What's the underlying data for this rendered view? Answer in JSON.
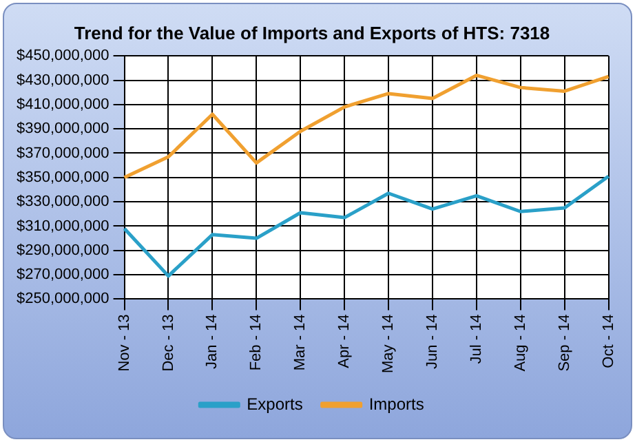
{
  "chart_data": {
    "type": "line",
    "title": "Trend for the Value of Imports and Exports of HTS: 7318",
    "categories": [
      "Nov - 13",
      "Dec - 13",
      "Jan - 14",
      "Feb - 14",
      "Mar - 14",
      "Apr - 14",
      "May - 14",
      "Jun - 14",
      "Jul - 14",
      "Aug - 14",
      "Sep - 14",
      "Oct - 14"
    ],
    "series": [
      {
        "name": "Exports",
        "color": "#2aa0c8",
        "values": [
          308000000,
          269000000,
          303000000,
          300000000,
          321000000,
          317000000,
          337000000,
          324000000,
          335000000,
          322000000,
          325000000,
          351000000
        ]
      },
      {
        "name": "Imports",
        "color": "#f0a030",
        "values": [
          350000000,
          367000000,
          402000000,
          362000000,
          388000000,
          408000000,
          419000000,
          415000000,
          434000000,
          424000000,
          421000000,
          433000000
        ]
      }
    ],
    "ylim": [
      250000000,
      450000000
    ],
    "yticks": [
      {
        "value": 250000000,
        "label": "$250,000,000"
      },
      {
        "value": 270000000,
        "label": "$270,000,000"
      },
      {
        "value": 290000000,
        "label": "$290,000,000"
      },
      {
        "value": 310000000,
        "label": "$310,000,000"
      },
      {
        "value": 330000000,
        "label": "$330,000,000"
      },
      {
        "value": 350000000,
        "label": "$350,000,000"
      },
      {
        "value": 370000000,
        "label": "$370,000,000"
      },
      {
        "value": 390000000,
        "label": "$390,000,000"
      },
      {
        "value": 410000000,
        "label": "$410,000,000"
      },
      {
        "value": 430000000,
        "label": "$430,000,000"
      },
      {
        "value": 450000000,
        "label": "$450,000,000"
      }
    ],
    "grid": true,
    "legend": "bottom",
    "marker": "none",
    "line_style": "solid"
  }
}
